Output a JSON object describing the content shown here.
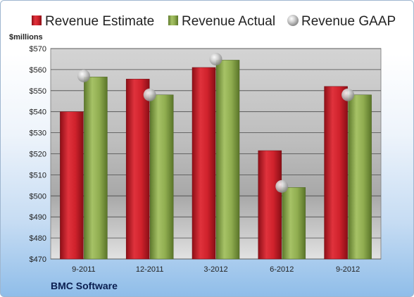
{
  "chart_data": {
    "type": "bar",
    "ylabel": "$millions",
    "company": "BMC Software",
    "ylim": [
      470,
      570
    ],
    "y_ticks": [
      "$470",
      "$480",
      "$490",
      "$500",
      "$510",
      "$520",
      "$530",
      "$540",
      "$550",
      "$560",
      "$570"
    ],
    "y_tick_values": [
      470,
      480,
      490,
      500,
      510,
      520,
      530,
      540,
      550,
      560,
      570
    ],
    "categories": [
      "9-2011",
      "12-2011",
      "3-2012",
      "6-2012",
      "9-2012"
    ],
    "series": [
      {
        "name": "Revenue Estimate",
        "values": [
          540,
          555.5,
          561,
          521.5,
          552
        ],
        "color": "#cc1f2a"
      },
      {
        "name": "Revenue Actual",
        "values": [
          556.5,
          548,
          564.5,
          504,
          548
        ],
        "color": "#8aa84a"
      },
      {
        "name": "Revenue GAAP",
        "values": [
          557,
          548,
          565,
          504.5,
          548
        ],
        "color": "#c8c8c8",
        "marker": "sphere"
      }
    ],
    "legend_position": "top",
    "grid": true
  }
}
